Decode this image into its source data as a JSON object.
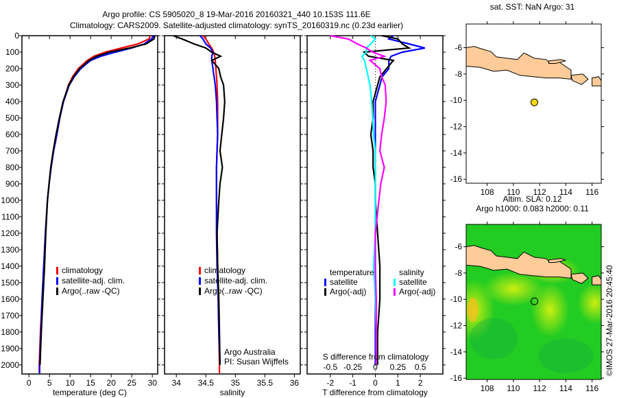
{
  "title_line1": "Argo profile: CS 5905020_8 19-Mar-2016 20160321_440 10.153S 111.6E",
  "title_line2": "Climatology: CARS2009. Satellite-adjusted climatology: synTS_20160319.nc (0.23d earlier)",
  "credit": "©IMOS 27-Mar-2016 20:45:40",
  "colors": {
    "climatology": "#ff0000",
    "satellite": "#0000ff",
    "argo": "#000000",
    "sal_sat": "#00ffff",
    "sal_argo": "#ff00ff",
    "land": "#ffcc99",
    "float": "#ffd700",
    "sla_base": "#22cc22",
    "sla_high": "#ccee11"
  },
  "chart_data": [
    {
      "type": "line",
      "id": "temp",
      "xlabel": "temperature (deg C)",
      "ylabel": "",
      "xlim": [
        -1.7,
        31.3
      ],
      "ylim": [
        2055,
        0
      ],
      "xticks": [
        0,
        5,
        10,
        15,
        20,
        25,
        30
      ],
      "yticks": [
        0,
        100,
        200,
        300,
        400,
        500,
        600,
        700,
        800,
        900,
        1000,
        1100,
        1200,
        1300,
        1400,
        1500,
        1600,
        1700,
        1800,
        1900,
        2000
      ],
      "depth": [
        0,
        20,
        50,
        75,
        100,
        125,
        150,
        200,
        250,
        300,
        400,
        500,
        600,
        700,
        800,
        900,
        1000,
        1200,
        1400,
        1600,
        1800,
        2000,
        2050
      ],
      "series": [
        {
          "name": "climatology",
          "color_key": "climatology",
          "values": [
            29.5,
            29.2,
            26.5,
            22.5,
            18.5,
            15.8,
            14.2,
            12,
            10.6,
            9.6,
            8.4,
            7.5,
            6.8,
            6,
            5.4,
            4.9,
            4.5,
            4,
            3.6,
            3.2,
            2.8,
            2.5,
            2.5
          ]
        },
        {
          "name": "satellite-adj. clim.",
          "color_key": "satellite",
          "values": [
            30.3,
            29.8,
            28,
            25,
            21,
            17.5,
            15,
            12.6,
            11,
            9.8,
            8.4,
            7.5,
            6.8,
            6,
            5.4,
            4.9,
            4.5,
            4,
            3.6,
            3.2,
            2.9,
            2.6,
            2.6
          ]
        },
        {
          "name": "Argo(..raw -QC)",
          "color_key": "argo",
          "values": [
            30.6,
            30.4,
            28.5,
            24.5,
            19.5,
            16.5,
            14.6,
            12.3,
            10.8,
            9.7,
            8.3,
            7.4,
            6.6,
            5.9,
            5.3,
            4.9,
            4.5,
            4.1,
            3.8,
            3.4,
            3,
            2.7,
            null
          ]
        }
      ]
    },
    {
      "type": "line",
      "id": "sal",
      "xlabel": "salinity",
      "xlim": [
        33.8,
        36.1
      ],
      "ylim": [
        2055,
        0
      ],
      "xticks": [
        34,
        34.5,
        35,
        35.5,
        36
      ],
      "depth": [
        0,
        20,
        50,
        75,
        100,
        125,
        150,
        200,
        250,
        300,
        400,
        500,
        600,
        700,
        800,
        900,
        1000,
        1200,
        1400,
        1600,
        1800,
        2000,
        2050
      ],
      "series": [
        {
          "name": "climatology",
          "color_key": "climatology",
          "values": [
            34.45,
            34.5,
            34.55,
            34.6,
            34.63,
            34.65,
            34.66,
            34.67,
            34.68,
            34.69,
            34.7,
            34.7,
            34.7,
            34.69,
            34.68,
            34.68,
            34.68,
            34.69,
            34.7,
            34.71,
            34.72,
            34.73,
            34.73
          ]
        },
        {
          "name": "satellite-adj. clim.",
          "color_key": "satellite",
          "values": [
            34.4,
            34.45,
            34.5,
            34.58,
            34.62,
            34.6,
            34.6,
            34.62,
            34.64,
            34.66,
            34.68,
            34.69,
            34.7,
            34.69,
            34.68,
            34.68,
            34.68,
            34.68,
            34.69,
            34.71,
            34.72,
            34.74,
            null
          ]
        },
        {
          "name": "Argo(..raw -QC)",
          "color_key": "argo",
          "values": [
            33.95,
            34.1,
            34.3,
            34.5,
            34.6,
            34.75,
            34.6,
            34.72,
            34.75,
            34.8,
            34.82,
            34.8,
            34.77,
            34.74,
            34.78,
            34.74,
            34.72,
            34.69,
            34.7,
            34.72,
            34.73,
            34.74,
            null
          ]
        }
      ],
      "annotation": [
        "Argo Australia",
        "PI: Susan Wijffels"
      ]
    },
    {
      "type": "line",
      "id": "diff",
      "xlabel": "T difference from climatology",
      "x2label": "S difference from climatology",
      "xlim": [
        -3.03,
        3.0
      ],
      "ylim": [
        2055,
        0
      ],
      "xticks": [
        -2,
        -1,
        0,
        1,
        2
      ],
      "x2ticks": [
        -0.5,
        -0.25,
        0,
        0.25,
        0.5
      ],
      "s_to_t_factor": 4,
      "depth": [
        0,
        20,
        50,
        75,
        100,
        125,
        150,
        200,
        250,
        300,
        400,
        500,
        600,
        700,
        800,
        900,
        1000,
        1200,
        1400,
        1600,
        1800,
        2000
      ],
      "legend_headers": [
        "temperature",
        "salinity"
      ],
      "series": [
        {
          "name": "satellite",
          "group": "temperature",
          "color_key": "satellite",
          "values": [
            0.8,
            0.6,
            1.5,
            2.2,
            1.2,
            0.7,
            0.6,
            0.6,
            0.3,
            0.2,
            0,
            0,
            0,
            0,
            0,
            0,
            0,
            0,
            0,
            0,
            0,
            0
          ]
        },
        {
          "name": "Argo(-adj)",
          "group": "temperature",
          "color_key": "argo",
          "values": [
            0.3,
            1.0,
            1.2,
            1.5,
            -0.5,
            -0.3,
            0.8,
            0.5,
            0.2,
            0.1,
            -0.1,
            -0.1,
            -0.2,
            -0.1,
            -0.1,
            0,
            0,
            0.1,
            0.2,
            0.2,
            0.1,
            0.1
          ]
        },
        {
          "name": "satellite",
          "group": "salinity",
          "color_key": "sal_sat",
          "values": [
            -0.05,
            0,
            -0.05,
            -0.1,
            -0.1,
            -0.15,
            -0.12,
            -0.1,
            -0.08,
            -0.06,
            -0.04,
            -0.03,
            -0.02,
            0,
            0,
            0,
            0,
            0,
            -0.02,
            0,
            0.01,
            0.01
          ]
        },
        {
          "name": "Argo(-adj)",
          "group": "salinity",
          "color_key": "sal_argo",
          "values": [
            -0.5,
            -0.3,
            -0.2,
            -0.1,
            -0.03,
            0.1,
            -0.06,
            0.05,
            0.07,
            0.11,
            0.12,
            0.1,
            0.07,
            0.05,
            0.1,
            0.06,
            0.04,
            0,
            0,
            0.01,
            0.01,
            0.01
          ]
        }
      ]
    },
    {
      "type": "map",
      "id": "sst",
      "title": "sat. SST: NaN Argo: 31",
      "xlim": [
        106.4,
        116.7
      ],
      "ylim": [
        -16.3,
        -4.2
      ],
      "xticks": [
        108,
        110,
        112,
        114,
        116
      ],
      "yticks": [
        -6,
        -8,
        -10,
        -12,
        -14,
        -16
      ],
      "float": [
        111.6,
        -10.153
      ]
    },
    {
      "type": "map",
      "id": "sla",
      "title": [
        "Altim. SLA: 0.12",
        "Argo h1000: 0.083 h2000: 0.11"
      ],
      "xlim": [
        106.4,
        116.7
      ],
      "ylim": [
        -16.1,
        -4.3
      ],
      "xticks": [
        108,
        110,
        112,
        114,
        116
      ],
      "yticks": [
        -6,
        -8,
        -10,
        -12,
        -14,
        -16
      ],
      "float": [
        111.6,
        -10.153
      ]
    }
  ],
  "java_coast": [
    [
      106.4,
      -6.0
    ],
    [
      107,
      -5.9
    ],
    [
      107.6,
      -6.1
    ],
    [
      108.3,
      -6.3
    ],
    [
      108.7,
      -6.7
    ],
    [
      109.5,
      -6.8
    ],
    [
      110.3,
      -6.9
    ],
    [
      110.8,
      -6.4
    ],
    [
      111.2,
      -6.6
    ],
    [
      111.6,
      -6.8
    ],
    [
      112.5,
      -6.9
    ],
    [
      112.8,
      -7.2
    ],
    [
      113.5,
      -7.1
    ],
    [
      114.4,
      -7.7
    ],
    [
      114.4,
      -8.4
    ],
    [
      113.5,
      -8.3
    ],
    [
      112.5,
      -8.3
    ],
    [
      111.5,
      -8.2
    ],
    [
      110.5,
      -8.1
    ],
    [
      109.5,
      -7.7
    ],
    [
      108.5,
      -7.8
    ],
    [
      107.5,
      -7.5
    ],
    [
      106.4,
      -7.4
    ]
  ],
  "islands": [
    [
      [
        112.7,
        -7.0
      ],
      [
        113.6,
        -6.9
      ],
      [
        114.0,
        -7.0
      ],
      [
        113.2,
        -7.2
      ],
      [
        112.7,
        -7.2
      ]
    ],
    [
      [
        114.4,
        -8.1
      ],
      [
        115.3,
        -8.0
      ],
      [
        115.7,
        -8.4
      ],
      [
        115.2,
        -8.8
      ],
      [
        114.5,
        -8.5
      ]
    ],
    [
      [
        116.0,
        -8.3
      ],
      [
        116.5,
        -8.2
      ],
      [
        116.7,
        -8.5
      ],
      [
        116.7,
        -8.9
      ],
      [
        116.0,
        -8.9
      ]
    ]
  ]
}
